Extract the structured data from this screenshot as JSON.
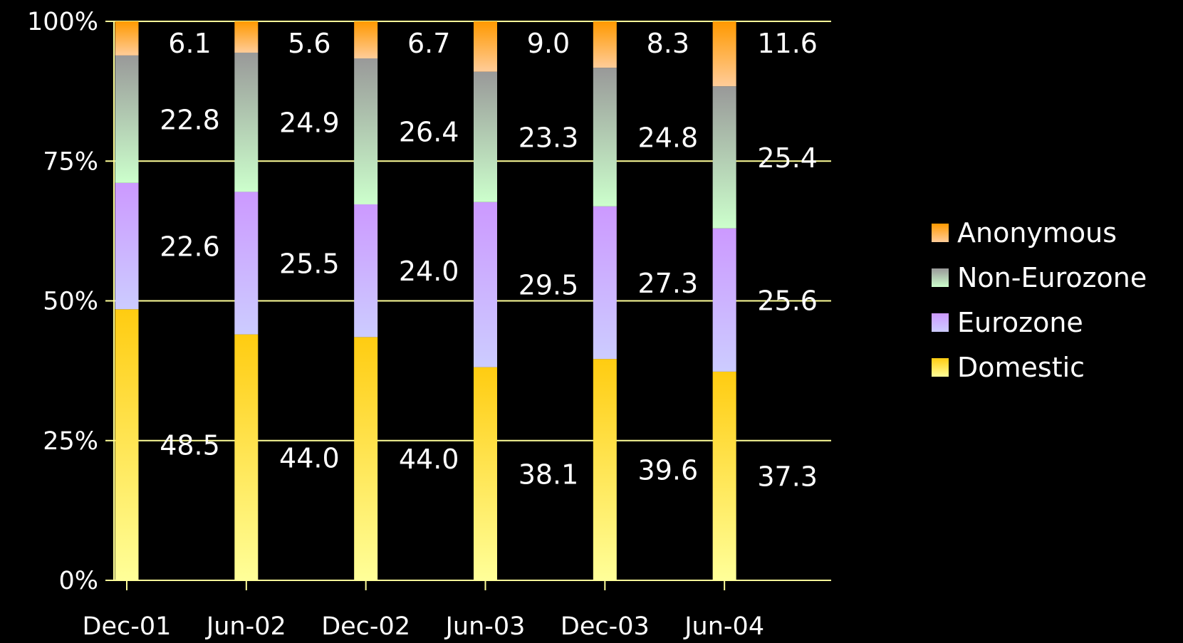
{
  "chart_data": {
    "type": "bar",
    "stacked": true,
    "percent": true,
    "categories": [
      "Dec-01",
      "Jun-02",
      "Dec-02",
      "Jun-03",
      "Dec-03",
      "Jun-04"
    ],
    "series": [
      {
        "name": "Domestic",
        "values": [
          48.5,
          44.0,
          44.0,
          38.1,
          39.6,
          37.3
        ],
        "labels": [
          "48.5",
          "44.0",
          "44.0",
          "38.1",
          "39.6",
          "37.3"
        ],
        "color_top": "#ffcc11",
        "color_bottom": "#ffff99"
      },
      {
        "name": "Eurozone",
        "values": [
          22.6,
          25.5,
          24.0,
          29.5,
          27.3,
          25.6
        ],
        "labels": [
          "22.6",
          "25.5",
          "24.0",
          "29.5",
          "27.3",
          "25.6"
        ],
        "color_top": "#cc99ff",
        "color_bottom": "#ccccff"
      },
      {
        "name": "Non-Eurozone",
        "values": [
          22.8,
          24.9,
          26.4,
          23.3,
          24.8,
          25.4
        ],
        "labels": [
          "22.8",
          "24.9",
          "26.4",
          "23.3",
          "24.8",
          "25.4"
        ],
        "color_top": "#999999",
        "color_bottom": "#ccffcc"
      },
      {
        "name": "Anonymous",
        "values": [
          6.1,
          5.6,
          6.7,
          9.0,
          8.3,
          11.6
        ],
        "labels": [
          "6.1",
          "5.6",
          "6.7",
          "9.0",
          "8.3",
          "11.6"
        ],
        "color_top": "#ff9900",
        "color_bottom": "#ffcc99"
      }
    ],
    "yticks": [
      "0%",
      "25%",
      "50%",
      "75%",
      "100%"
    ],
    "ylim": [
      0,
      100
    ],
    "grid": true,
    "grid_color": "#ffff99",
    "legend": {
      "position": "right",
      "order": [
        "Anonymous",
        "Non-Eurozone",
        "Eurozone",
        "Domestic"
      ]
    },
    "background": "#000000",
    "text_color": "#ffffff"
  }
}
